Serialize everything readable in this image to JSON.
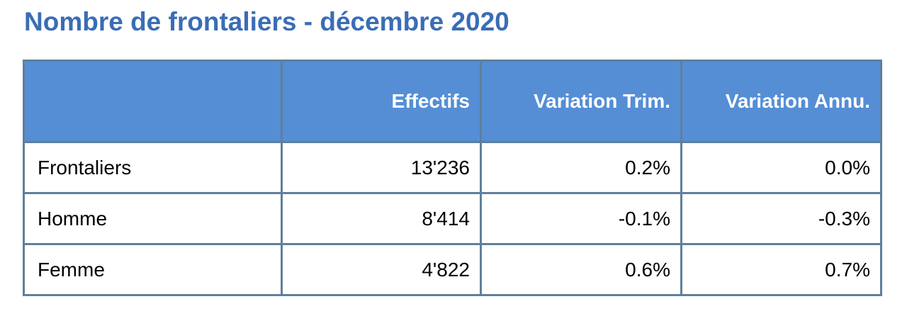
{
  "title": "Nombre de frontaliers - décembre 2020",
  "colors": {
    "title": "#3a6db5",
    "header_background": "#558ed5",
    "header_text": "#ffffff",
    "grid_lines": "#5f7f9c"
  },
  "chart_data": {
    "type": "table",
    "title": "Nombre de frontaliers - décembre 2020",
    "columns": [
      "",
      "Effectifs",
      "Variation Trim.",
      "Variation Annu."
    ],
    "rows": [
      {
        "label": "Frontaliers",
        "effectifs": "13'236",
        "variation_trim": "0.2%",
        "variation_annu": "0.0%"
      },
      {
        "label": "Homme",
        "effectifs": "8'414",
        "variation_trim": "-0.1%",
        "variation_annu": "-0.3%"
      },
      {
        "label": "Femme",
        "effectifs": "4'822",
        "variation_trim": "0.6%",
        "variation_annu": "0.7%"
      }
    ]
  }
}
